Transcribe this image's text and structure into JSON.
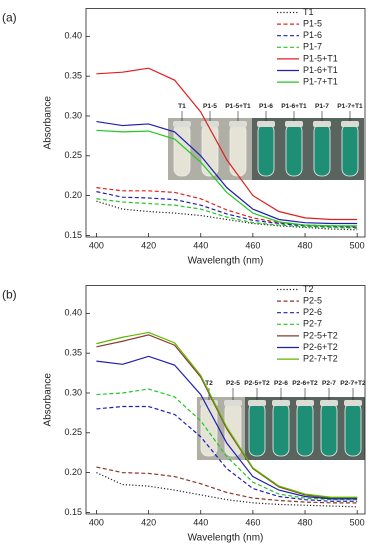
{
  "chart_data": [
    {
      "type": "line",
      "panel_label": "(a)",
      "x_label": "Wavelength (nm)",
      "y_label": "Absorbance",
      "x": [
        400,
        410,
        420,
        430,
        440,
        450,
        460,
        470,
        480,
        490,
        500
      ],
      "xlim": [
        396,
        503
      ],
      "xticks": [
        400,
        420,
        440,
        460,
        480,
        500
      ],
      "ylim": [
        0.148,
        0.435
      ],
      "yticks": [
        0.15,
        {
          "value": 0.2,
          "label": "0.20"
        },
        0.25,
        {
          "value": 0.3,
          "label": "0.30"
        },
        0.35,
        {
          "value": 0.4,
          "label": "0.40"
        }
      ],
      "legend": "upper right",
      "series": [
        {
          "name": "T1",
          "color": "#222222",
          "dash": "dotted",
          "values": [
            0.193,
            0.183,
            0.18,
            0.178,
            0.175,
            0.17,
            0.165,
            0.162,
            0.16,
            0.158,
            0.157
          ]
        },
        {
          "name": "P1-5",
          "color": "#e02020",
          "dash": "dashed",
          "values": [
            0.21,
            0.206,
            0.206,
            0.204,
            0.196,
            0.182,
            0.172,
            0.166,
            0.163,
            0.162,
            0.161
          ]
        },
        {
          "name": "P1-6",
          "color": "#2020b0",
          "dash": "dashed",
          "values": [
            0.205,
            0.198,
            0.197,
            0.195,
            0.188,
            0.177,
            0.169,
            0.165,
            0.162,
            0.161,
            0.16
          ]
        },
        {
          "name": "P1-7",
          "color": "#22c822",
          "dash": "dashed",
          "values": [
            0.196,
            0.192,
            0.19,
            0.188,
            0.183,
            0.173,
            0.166,
            0.163,
            0.161,
            0.16,
            0.159
          ]
        },
        {
          "name": "P1-5+T1",
          "color": "#e02020",
          "dash": "solid",
          "values": [
            0.353,
            0.355,
            0.36,
            0.345,
            0.305,
            0.245,
            0.2,
            0.18,
            0.172,
            0.17,
            0.17
          ]
        },
        {
          "name": "P1-6+T1",
          "color": "#2020b0",
          "dash": "solid",
          "values": [
            0.293,
            0.288,
            0.29,
            0.28,
            0.25,
            0.21,
            0.183,
            0.17,
            0.166,
            0.165,
            0.165
          ]
        },
        {
          "name": "P1-7+T1",
          "color": "#22c822",
          "dash": "solid",
          "values": [
            0.282,
            0.28,
            0.281,
            0.271,
            0.242,
            0.204,
            0.178,
            0.167,
            0.163,
            0.162,
            0.162
          ]
        }
      ],
      "annotations": [
        "T1",
        "P1-5",
        "P1-5+T1",
        "P1-6",
        "P1-6+T1",
        "P1-7",
        "P1-7+T1"
      ]
    },
    {
      "type": "line",
      "panel_label": "(b)",
      "x_label": "Wavelength (nm)",
      "y_label": "Absorbance",
      "x": [
        400,
        410,
        420,
        430,
        440,
        450,
        460,
        470,
        480,
        490,
        500
      ],
      "xlim": [
        396,
        503
      ],
      "xticks": [
        400,
        420,
        440,
        460,
        480,
        500
      ],
      "ylim": [
        0.148,
        0.435
      ],
      "yticks": [
        0.15,
        {
          "value": 0.2,
          "label": "0.20"
        },
        0.25,
        {
          "value": 0.3,
          "label": "0.30"
        },
        0.35,
        {
          "value": 0.4,
          "label": "0.40"
        }
      ],
      "legend": "upper right",
      "series": [
        {
          "name": "T2",
          "color": "#222222",
          "dash": "dotted",
          "values": [
            0.2,
            0.185,
            0.183,
            0.178,
            0.172,
            0.166,
            0.162,
            0.16,
            0.159,
            0.158,
            0.157
          ]
        },
        {
          "name": "P2-5",
          "color": "#8b3a2a",
          "dash": "dashed",
          "values": [
            0.207,
            0.2,
            0.199,
            0.195,
            0.186,
            0.175,
            0.168,
            0.165,
            0.163,
            0.162,
            0.162
          ]
        },
        {
          "name": "P2-6",
          "color": "#2020b0",
          "dash": "dashed",
          "values": [
            0.28,
            0.283,
            0.283,
            0.273,
            0.245,
            0.205,
            0.18,
            0.17,
            0.166,
            0.164,
            0.164
          ]
        },
        {
          "name": "P2-7",
          "color": "#22c822",
          "dash": "dashed",
          "values": [
            0.298,
            0.3,
            0.305,
            0.295,
            0.265,
            0.22,
            0.188,
            0.173,
            0.168,
            0.166,
            0.166
          ]
        },
        {
          "name": "P2-5+T2",
          "color": "#8b3a2a",
          "dash": "solid",
          "values": [
            0.358,
            0.365,
            0.373,
            0.36,
            0.32,
            0.255,
            0.205,
            0.182,
            0.172,
            0.168,
            0.168
          ]
        },
        {
          "name": "P2-6+T2",
          "color": "#2020b0",
          "dash": "solid",
          "values": [
            0.34,
            0.336,
            0.346,
            0.335,
            0.298,
            0.237,
            0.195,
            0.178,
            0.17,
            0.167,
            0.167
          ]
        },
        {
          "name": "P2-7+T2",
          "color": "#5cb800",
          "dash": "solid",
          "values": [
            0.362,
            0.37,
            0.376,
            0.363,
            0.322,
            0.257,
            0.206,
            0.183,
            0.173,
            0.169,
            0.169
          ]
        }
      ],
      "annotations": [
        "T2",
        "P2-5",
        "P2-5+T2",
        "P2-6",
        "P2-6+T2",
        "P2-7",
        "P2-7+T2"
      ]
    }
  ]
}
